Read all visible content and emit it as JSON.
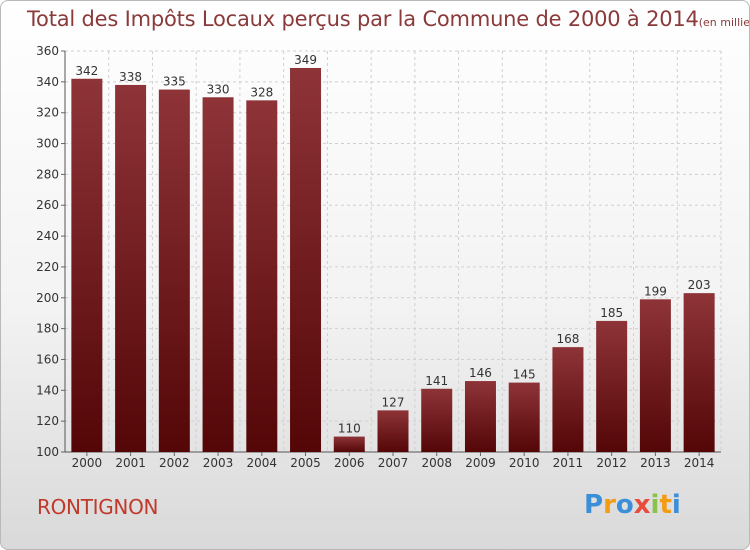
{
  "title": "Total des Impôts Locaux perçus par la Commune de 2000 à 2014",
  "unit": "(en milliers d'€)",
  "commune": "RONTIGNON",
  "logo_text": "Proxiti",
  "colors": {
    "bar": "#6e1519",
    "bar_light": "#8e3438",
    "title": "#8a3a3a",
    "commune": "#c0392b"
  },
  "chart_data": {
    "type": "bar",
    "categories": [
      "2000",
      "2001",
      "2002",
      "2003",
      "2004",
      "2005",
      "2006",
      "2007",
      "2008",
      "2009",
      "2010",
      "2011",
      "2012",
      "2013",
      "2014"
    ],
    "values": [
      342,
      338,
      335,
      330,
      328,
      349,
      110,
      127,
      141,
      146,
      145,
      168,
      185,
      199,
      203
    ],
    "title": "Total des Impôts Locaux perçus par la Commune de 2000 à 2014",
    "xlabel": "",
    "ylabel": "",
    "ylim": [
      100,
      360
    ],
    "yticks": [
      100,
      120,
      140,
      160,
      180,
      200,
      220,
      240,
      260,
      280,
      300,
      320,
      340,
      360
    ],
    "grid": true,
    "data_labels": true
  }
}
